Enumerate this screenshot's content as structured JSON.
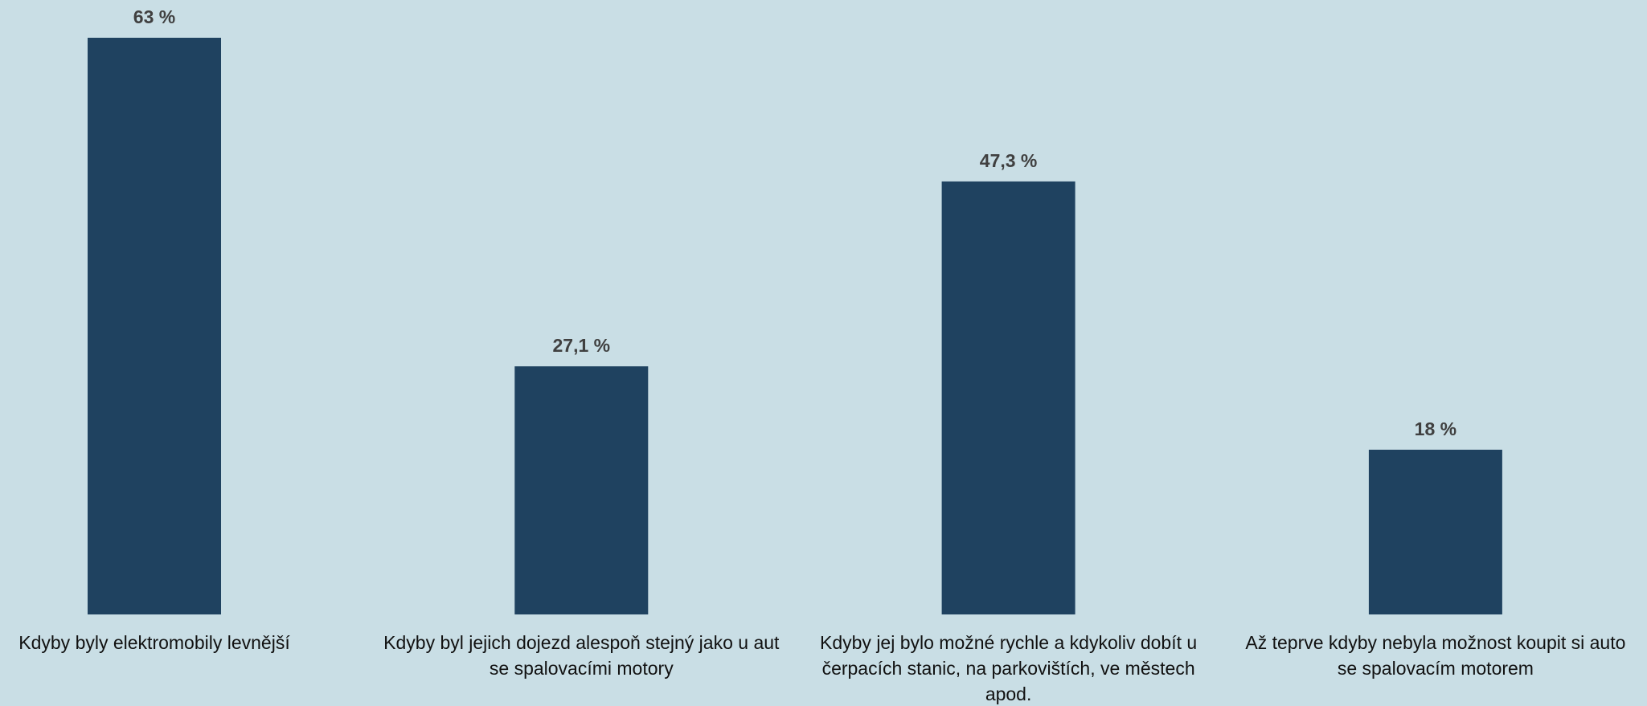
{
  "chart_data": {
    "type": "bar",
    "title": "",
    "xlabel": "",
    "ylabel": "",
    "ylim": [
      0,
      63
    ],
    "grid": false,
    "legend": "none",
    "bar_color": "#1f4260",
    "background_color": "#c9dee5",
    "categories": [
      "Kdyby byly elektromobily levnější",
      "Kdyby byl jejich dojezd alespoň stejný jako u aut se spalovacími motory",
      "Kdyby jej bylo možné rychle a kdykoliv dobít u čerpacích stanic, na parkovištích, ve městech apod.",
      "Až teprve kdyby nebyla možnost koupit si auto se spalovacím motorem"
    ],
    "category_lines": [
      [
        "Kdyby byly elektromobily levnější"
      ],
      [
        "Kdyby byl jejich dojezd alespoň stejný jako u aut",
        "se spalovacími motory"
      ],
      [
        "Kdyby jej bylo možné rychle a kdykoliv dobít u",
        "čerpacích stanic, na parkovištích, ve městech",
        "apod."
      ],
      [
        "Až teprve kdyby nebyla možnost koupit si auto",
        "se spalovacím motorem"
      ]
    ],
    "values": [
      63,
      27.1,
      47.3,
      18
    ],
    "data_labels": [
      "63 %",
      "27,1 %",
      "47,3 %",
      "18 %"
    ]
  }
}
